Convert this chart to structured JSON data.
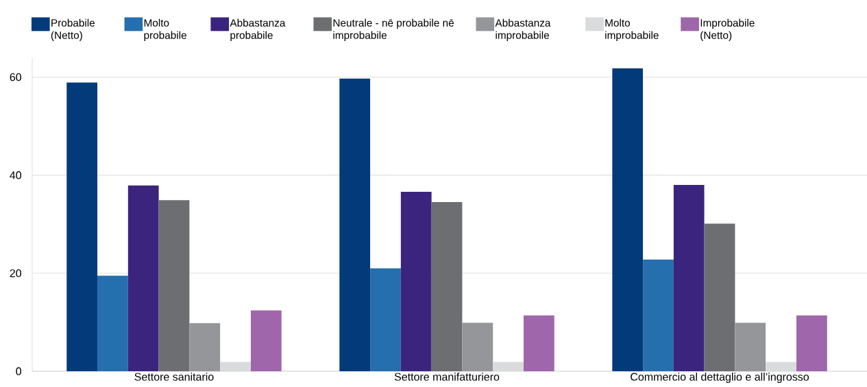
{
  "chart_data": {
    "type": "bar",
    "categories": [
      "Settore sanitario",
      "Settore manifatturiero",
      "Commercio al dettaglio e all’ingrosso"
    ],
    "series": [
      {
        "name": "Probabile (Netto)",
        "color": "#033a7a",
        "values": [
          58.9,
          59.7,
          61.8
        ]
      },
      {
        "name": "Molto probabile",
        "color": "#256fae",
        "values": [
          19.5,
          21.0,
          22.8
        ]
      },
      {
        "name": "Abbastanza probabile",
        "color": "#3b247d",
        "values": [
          37.9,
          36.6,
          38.0
        ]
      },
      {
        "name": "Neutrale - nē probabile nē improbabile",
        "color": "#6d6e72",
        "values": [
          34.9,
          34.5,
          30.1
        ]
      },
      {
        "name": "Abbastanza improbabile",
        "color": "#959699",
        "values": [
          9.8,
          9.9,
          9.9
        ]
      },
      {
        "name": "Molto improbabile",
        "color": "#dadbdd",
        "values": [
          1.9,
          1.9,
          1.9
        ]
      },
      {
        "name": "Improbabile (Netto)",
        "color": "#a066ab",
        "values": [
          12.4,
          11.4,
          11.4
        ]
      }
    ],
    "ylim": [
      0,
      64
    ],
    "yticks": [
      0,
      20,
      40,
      60
    ],
    "grid": "y",
    "legend": "top"
  }
}
